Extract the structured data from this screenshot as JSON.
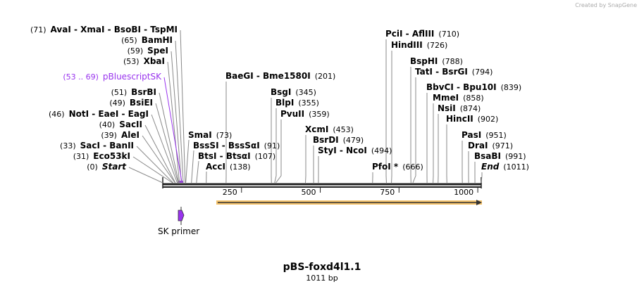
{
  "credit": "Created by SnapGene",
  "title": "pBS-foxd4l1.1",
  "length": "1011 bp",
  "ticks": [
    "250",
    "500",
    "750",
    "1000"
  ],
  "primer": "SK primer",
  "colors": {
    "feature": "#9933ee",
    "orf": "#f5c36b",
    "backbone": "#222222"
  },
  "left_sites": [
    {
      "pos": "(71)",
      "name": "AvaI  - XmaI  - BsoBI  - TspMI",
      "bp": 71
    },
    {
      "pos": "(65)",
      "name": "BamHI",
      "bp": 65
    },
    {
      "pos": "(59)",
      "name": "SpeI",
      "bp": 59
    },
    {
      "pos": "(53)",
      "name": "XbaI",
      "bp": 53
    },
    {
      "pos": "(53 .. 69)",
      "name": "pBluescriptSK",
      "bp": 61,
      "feature": true
    },
    {
      "pos": "(51)",
      "name": "BsrBI",
      "bp": 51
    },
    {
      "pos": "(49)",
      "name": "BsiEI",
      "bp": 49
    },
    {
      "pos": "(46)",
      "name": "NotI  - EaeI  - EagI",
      "bp": 46
    },
    {
      "pos": "(40)",
      "name": "SacII",
      "bp": 40
    },
    {
      "pos": "(39)",
      "name": "AleI",
      "bp": 39
    },
    {
      "pos": "(33)",
      "name": "SacI  - BanII",
      "bp": 33
    },
    {
      "pos": "(31)",
      "name": "Eco53kI",
      "bp": 31
    },
    {
      "pos": "(0)",
      "name": "Start",
      "bp": 0,
      "italic": true
    }
  ],
  "right_sites": [
    {
      "name": "SmaI",
      "pos": "(73)",
      "bp": 73
    },
    {
      "name": "BssSI  - BssSαI",
      "pos": "(91)",
      "bp": 91
    },
    {
      "name": "BtsI  - BtsαI",
      "pos": "(107)",
      "bp": 107
    },
    {
      "name": "AccI",
      "pos": "(138)",
      "bp": 138
    },
    {
      "name": "BaeGI  - Bme1580I",
      "pos": "(201)",
      "bp": 201
    },
    {
      "name": "BsgI",
      "pos": "(345)",
      "bp": 345
    },
    {
      "name": "BlpI",
      "pos": "(355)",
      "bp": 355
    },
    {
      "name": "PvuII",
      "pos": "(359)",
      "bp": 359
    },
    {
      "name": "XcmI",
      "pos": "(453)",
      "bp": 453
    },
    {
      "name": "BsrDI",
      "pos": "(479)",
      "bp": 479
    },
    {
      "name": "StyI  - NcoI",
      "pos": "(494)",
      "bp": 494
    },
    {
      "name": "PfoI *",
      "pos": "(666)",
      "bp": 666
    },
    {
      "name": "PciI  - AflIII",
      "pos": "(710)",
      "bp": 710
    },
    {
      "name": "HindIII",
      "pos": "(726)",
      "bp": 726
    },
    {
      "name": "BspHI",
      "pos": "(788)",
      "bp": 788
    },
    {
      "name": "TatI  - BsrGI",
      "pos": "(794)",
      "bp": 794
    },
    {
      "name": "BbvCI  - Bpu10I",
      "pos": "(839)",
      "bp": 839
    },
    {
      "name": "MmeI",
      "pos": "(858)",
      "bp": 858
    },
    {
      "name": "NsiI",
      "pos": "(874)",
      "bp": 874
    },
    {
      "name": "HincII",
      "pos": "(902)",
      "bp": 902
    },
    {
      "name": "PasI",
      "pos": "(951)",
      "bp": 951
    },
    {
      "name": "DraI",
      "pos": "(971)",
      "bp": 971
    },
    {
      "name": "BsaBI",
      "pos": "(991)",
      "bp": 991
    },
    {
      "name": "End",
      "pos": "(1011)",
      "bp": 1011,
      "italic": true
    }
  ]
}
